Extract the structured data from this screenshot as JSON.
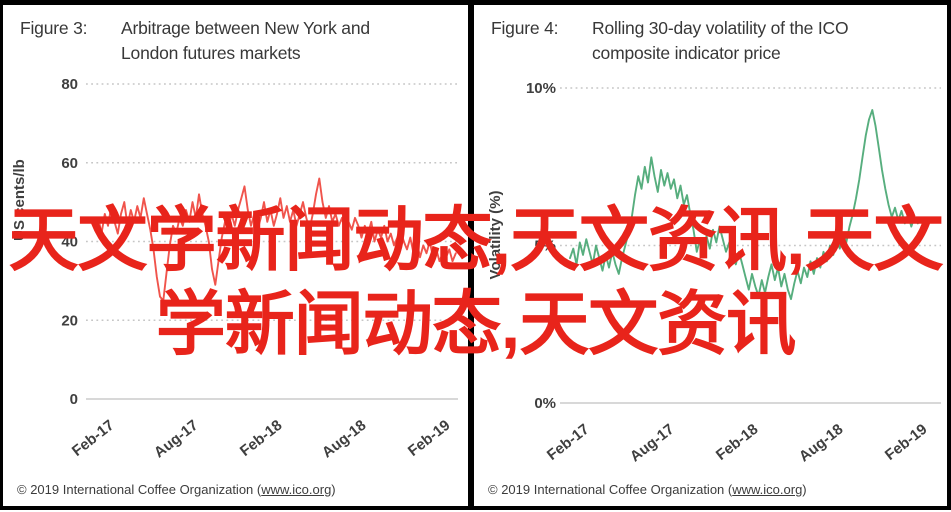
{
  "watermark": {
    "line1": "天文学新闻动态,天文资讯,天文",
    "line2": "学新闻动态,天文资讯",
    "color": "#e8241b"
  },
  "figures": [
    {
      "label": "Figure 3:",
      "title": "Arbitrage between New York and London futures markets",
      "copyright_prefix": "© 2019 International Coffee Organization (",
      "copyright_link": "www.ico.org",
      "copyright_suffix": ")"
    },
    {
      "label": "Figure 4:",
      "title": "Rolling 30-day volatility of the ICO composite indicator price",
      "copyright_prefix": "© 2019 International Coffee Organization (",
      "copyright_link": "www.ico.org",
      "copyright_suffix": ")"
    }
  ],
  "chart_data": [
    {
      "type": "line",
      "title": "Arbitrage between New York and London futures markets",
      "ylabel": "US cents/lb",
      "xlabel": "",
      "legend_position": "none",
      "grid": "horizontal-dotted",
      "color": "#f0544c",
      "ylim": [
        0,
        80
      ],
      "yticks": [
        {
          "label": "80",
          "value": 80
        },
        {
          "label": "60",
          "value": 60
        },
        {
          "label": "40",
          "value": 40
        },
        {
          "label": "20",
          "value": 20
        },
        {
          "label": "0",
          "value": 0
        }
      ],
      "categories": [
        "Feb-17",
        "Aug-17",
        "Feb-18",
        "Aug-18",
        "Feb-19"
      ],
      "values": [
        43,
        46,
        42,
        47,
        44,
        49,
        45,
        42,
        47,
        50,
        44,
        48,
        45,
        49,
        46,
        51,
        47,
        43,
        38,
        31,
        26,
        25,
        32,
        39,
        44,
        42,
        46,
        44,
        48,
        45,
        50,
        46,
        52,
        47,
        44,
        40,
        33,
        29,
        35,
        41,
        45,
        43,
        47,
        44,
        48,
        51,
        54,
        48,
        44,
        47,
        43,
        46,
        50,
        45,
        48,
        44,
        47,
        51,
        46,
        49,
        45,
        48,
        44,
        47,
        50,
        46,
        43,
        47,
        52,
        56,
        50,
        46,
        49,
        45,
        47,
        44,
        46,
        42,
        45,
        43,
        46,
        44,
        41,
        44,
        42,
        45,
        40,
        43,
        41,
        44,
        40,
        42,
        39,
        41,
        43,
        40,
        38,
        41,
        37,
        40,
        36,
        39,
        37,
        40,
        36,
        38,
        35,
        37,
        36,
        38,
        35,
        37
      ]
    },
    {
      "type": "line",
      "title": "Rolling 30-day volatility of the ICO composite indicator price",
      "ylabel": "Volatility (%)",
      "xlabel": "",
      "legend_position": "none",
      "grid": "horizontal-dotted",
      "color": "#57ae7e",
      "ylim": [
        0,
        10
      ],
      "yticks": [
        {
          "label": "10%",
          "value": 10
        },
        {
          "label": "5%",
          "value": 5
        },
        {
          "label": "0%",
          "value": 0
        }
      ],
      "categories": [
        "Feb-17",
        "Aug-17",
        "Feb-18",
        "Aug-18",
        "Feb-19"
      ],
      "values": [
        4.6,
        4.9,
        4.4,
        5.1,
        4.7,
        5.2,
        4.8,
        4.4,
        5.0,
        4.6,
        4.2,
        4.7,
        4.3,
        4.8,
        4.4,
        4.1,
        4.6,
        5.0,
        5.4,
        5.9,
        6.6,
        7.2,
        6.8,
        7.5,
        7.0,
        7.8,
        7.2,
        6.7,
        7.4,
        6.9,
        7.3,
        6.8,
        7.1,
        6.5,
        6.9,
        6.3,
        6.6,
        6.0,
        5.5,
        4.8,
        5.2,
        4.7,
        5.3,
        4.9,
        5.5,
        5.1,
        5.6,
        5.2,
        4.8,
        5.1,
        4.7,
        4.4,
        4.8,
        4.4,
        4.0,
        3.6,
        4.1,
        3.7,
        3.4,
        3.9,
        3.5,
        4.0,
        4.4,
        3.9,
        4.3,
        3.7,
        4.1,
        3.6,
        3.3,
        3.8,
        4.2,
        3.8,
        4.3,
        4.0,
        4.5,
        4.1,
        4.6,
        4.3,
        4.8,
        4.5,
        5.0,
        4.7,
        5.2,
        4.9,
        5.4,
        5.1,
        5.6,
        6.0,
        6.5,
        7.1,
        7.8,
        8.5,
        9.0,
        9.3,
        8.8,
        8.1,
        7.4,
        6.8,
        6.3,
        5.9,
        6.2,
        5.8,
        6.1,
        5.7,
        6.0,
        5.6,
        5.9,
        5.7
      ]
    }
  ]
}
